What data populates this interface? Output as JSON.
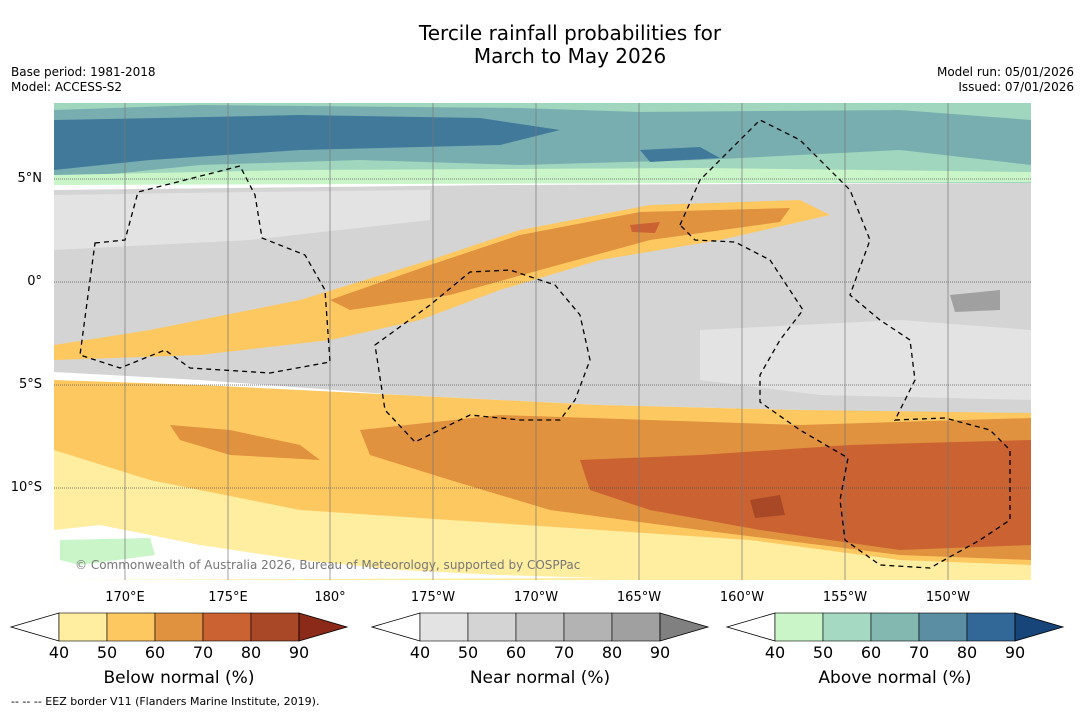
{
  "title": {
    "line1": "Tercile rainfall probabilities for",
    "line2": "March to May 2026"
  },
  "meta_left": {
    "base_period": "Base period: 1981-2018",
    "model": "Model: ACCESS-S2"
  },
  "meta_right": {
    "model_run": "Model run: 05/01/2026",
    "issued": "Issued: 07/01/2026"
  },
  "lat_labels": [
    "5°N",
    "0°",
    "5°S",
    "10°S"
  ],
  "lon_labels": [
    "170°E",
    "175°E",
    "180°",
    "175°W",
    "170°W",
    "165°W",
    "160°W",
    "155°W",
    "150°W"
  ],
  "copyright": "© Commonwealth of Australia 2026, Bureau of Meteorology, supported by COSPPac",
  "colorbars": [
    {
      "label": "Below normal (%)",
      "ticks": [
        "40",
        "50",
        "60",
        "70",
        "80",
        "90"
      ],
      "colors": [
        "#ffffff",
        "#ffeda0",
        "#fec860",
        "#e0923f",
        "#cb6231",
        "#a84826",
        "#8b2a18"
      ]
    },
    {
      "label": "Near normal (%)",
      "ticks": [
        "40",
        "50",
        "60",
        "70",
        "80",
        "90"
      ],
      "colors": [
        "#ffffff",
        "#e3e3e3",
        "#d4d4d4",
        "#c4c4c4",
        "#b3b3b3",
        "#a0a0a0",
        "#808080"
      ]
    },
    {
      "label": "Above normal (%)",
      "ticks": [
        "40",
        "50",
        "60",
        "70",
        "80",
        "90"
      ],
      "colors": [
        "#ffffff",
        "#c9f5c9",
        "#a6d9c2",
        "#83b8b0",
        "#5b8ea3",
        "#326897",
        "#17457a"
      ]
    }
  ],
  "footer": "-- -- -- EEZ border V11 (Flanders Marine Institute, 2019)."
}
